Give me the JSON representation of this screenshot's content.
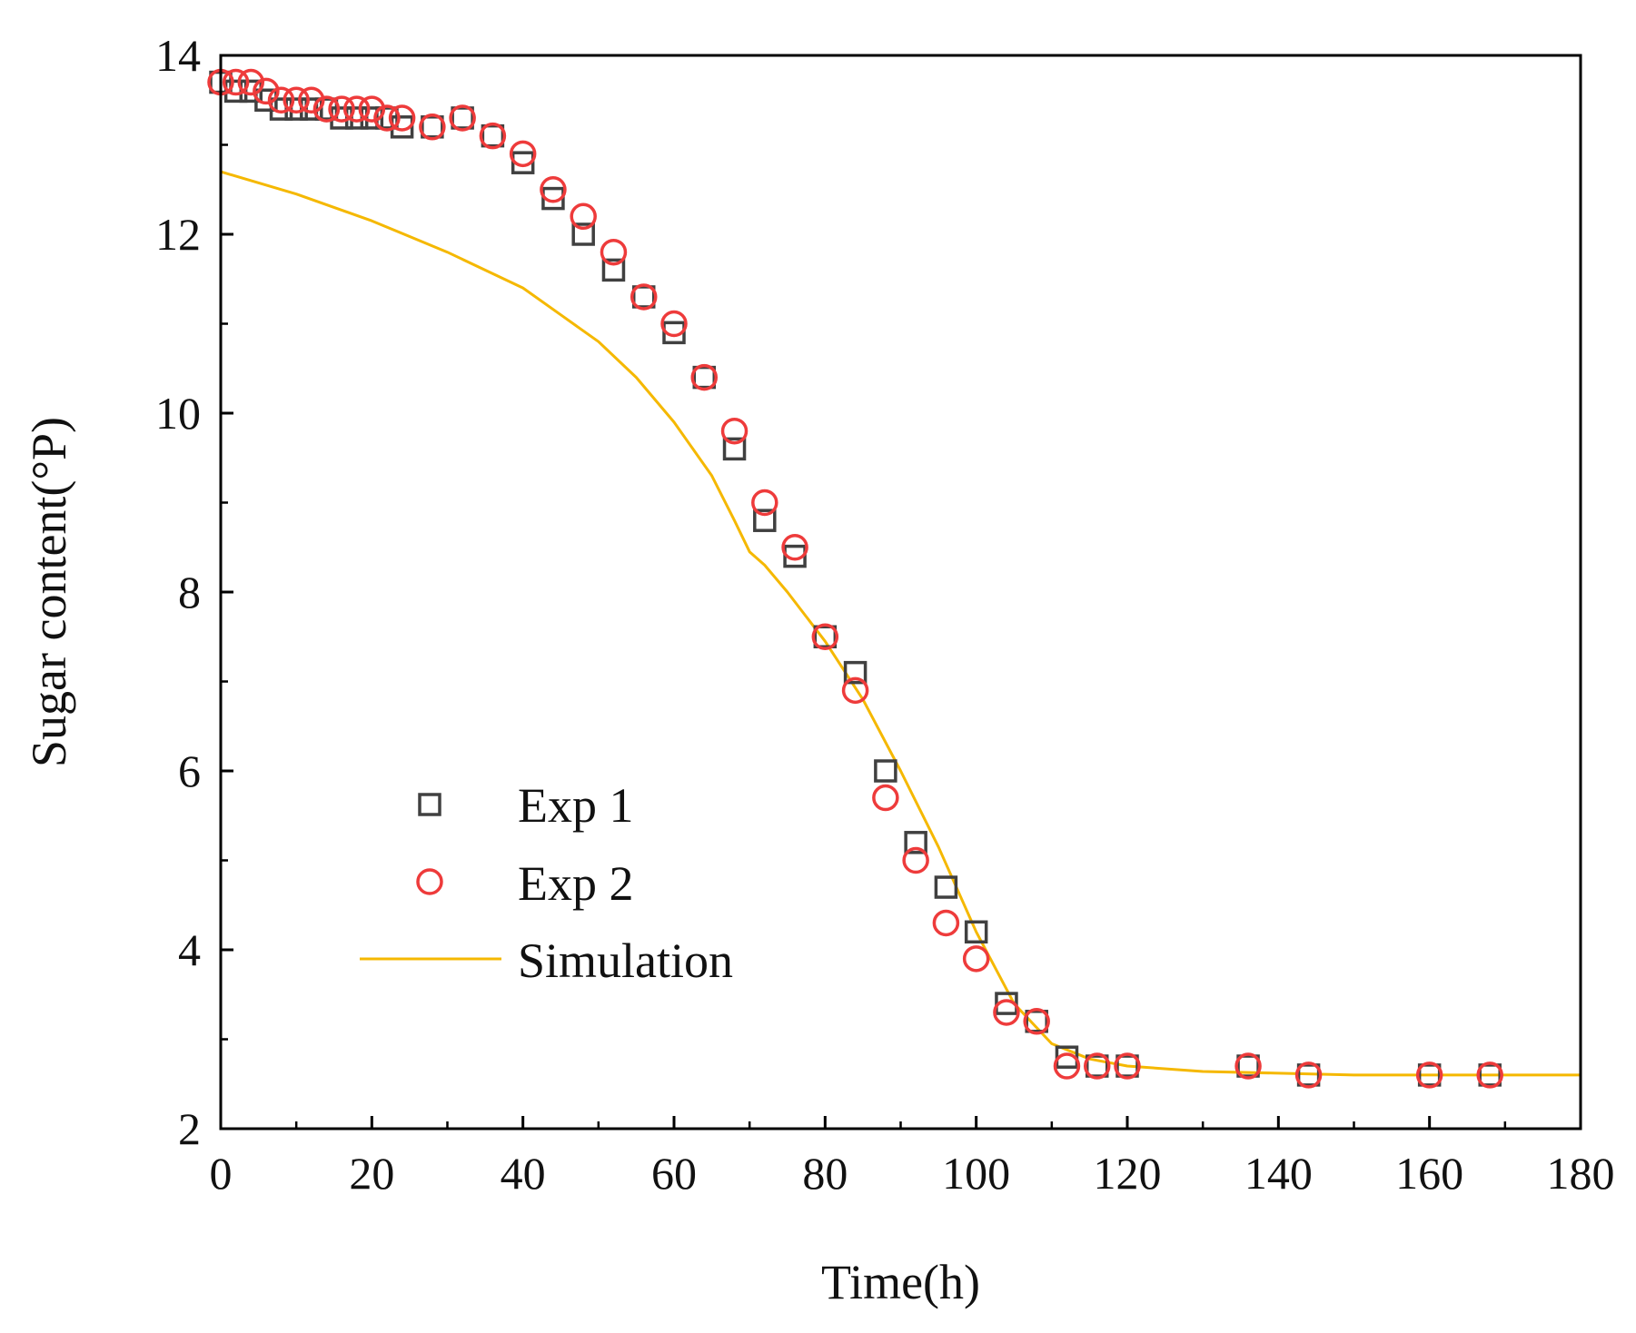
{
  "chart_data": {
    "type": "scatter",
    "xlabel": "Time(h)",
    "ylabel": "Sugar content(°P)",
    "xlim": [
      0,
      180
    ],
    "ylim": [
      2,
      14
    ],
    "xticks": [
      0,
      20,
      40,
      60,
      80,
      100,
      120,
      140,
      160,
      180
    ],
    "yticks": [
      2,
      4,
      6,
      8,
      10,
      12,
      14
    ],
    "legend_position": "lower-left",
    "series": [
      {
        "name": "Exp 1",
        "marker": "square",
        "color": "#404040",
        "x": [
          0,
          2,
          4,
          6,
          8,
          10,
          12,
          14,
          16,
          18,
          20,
          22,
          24,
          28,
          32,
          36,
          40,
          44,
          48,
          52,
          56,
          60,
          64,
          68,
          72,
          76,
          80,
          84,
          88,
          92,
          96,
          100,
          104,
          108,
          112,
          116,
          120,
          136,
          144,
          160,
          168
        ],
        "y": [
          13.7,
          13.6,
          13.6,
          13.5,
          13.4,
          13.4,
          13.4,
          13.4,
          13.3,
          13.3,
          13.3,
          13.3,
          13.2,
          13.2,
          13.3,
          13.1,
          12.8,
          12.4,
          12.0,
          11.6,
          11.3,
          10.9,
          10.4,
          9.6,
          8.8,
          8.4,
          7.5,
          7.1,
          6.0,
          5.2,
          4.7,
          4.2,
          3.4,
          3.2,
          2.8,
          2.7,
          2.7,
          2.7,
          2.6,
          2.6,
          2.6
        ]
      },
      {
        "name": "Exp 2",
        "marker": "circle",
        "color": "#ee3b3b",
        "x": [
          0,
          2,
          4,
          6,
          8,
          10,
          12,
          14,
          16,
          18,
          20,
          22,
          24,
          28,
          32,
          36,
          40,
          44,
          48,
          52,
          56,
          60,
          64,
          68,
          72,
          76,
          80,
          84,
          88,
          92,
          96,
          100,
          104,
          108,
          112,
          116,
          120,
          136,
          144,
          160,
          168
        ],
        "y": [
          13.7,
          13.7,
          13.7,
          13.6,
          13.5,
          13.5,
          13.5,
          13.4,
          13.4,
          13.4,
          13.4,
          13.3,
          13.3,
          13.2,
          13.3,
          13.1,
          12.9,
          12.5,
          12.2,
          11.8,
          11.3,
          11.0,
          10.4,
          9.8,
          9.0,
          8.5,
          7.5,
          6.9,
          5.7,
          5.0,
          4.3,
          3.9,
          3.3,
          3.2,
          2.7,
          2.7,
          2.7,
          2.7,
          2.6,
          2.6,
          2.6
        ]
      },
      {
        "name": "Simulation",
        "marker": "line",
        "color": "#f5b800",
        "x": [
          0,
          10,
          20,
          30,
          40,
          45,
          50,
          55,
          60,
          65,
          68,
          70,
          72,
          75,
          80,
          85,
          90,
          95,
          100,
          105,
          110,
          115,
          120,
          130,
          140,
          150,
          160,
          170,
          180
        ],
        "y": [
          12.7,
          12.45,
          12.15,
          11.8,
          11.4,
          11.1,
          10.8,
          10.4,
          9.9,
          9.3,
          8.8,
          8.45,
          8.3,
          8.0,
          7.45,
          6.8,
          6.0,
          5.15,
          4.2,
          3.4,
          2.95,
          2.78,
          2.7,
          2.64,
          2.62,
          2.6,
          2.6,
          2.6,
          2.6
        ]
      }
    ]
  }
}
